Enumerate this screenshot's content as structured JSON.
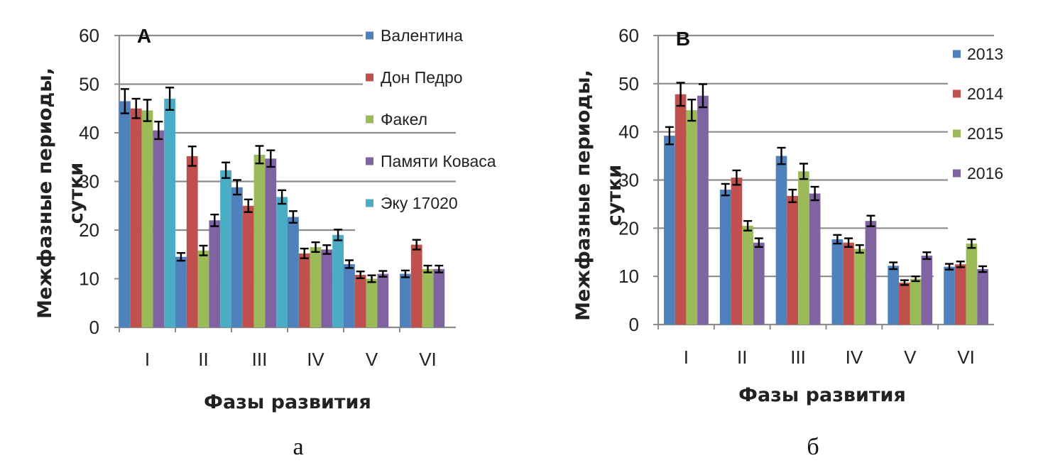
{
  "chart_data": [
    {
      "type": "bar",
      "panel_label": "A",
      "caption": "а",
      "categories": [
        "I",
        "II",
        "III",
        "IV",
        "V",
        "VI"
      ],
      "xlabel": "Фазы развития",
      "ylabel_lines": [
        "Межфазные периоды,",
        "сутки"
      ],
      "ylim": [
        0,
        60
      ],
      "yticks": [
        "0",
        "10",
        "20",
        "30",
        "40",
        "50",
        "60"
      ],
      "grid": true,
      "legend_position": "right",
      "series": [
        {
          "name": "Валентина",
          "color": "#4F81BD",
          "values": [
            46.5,
            14.5,
            28.8,
            22.7,
            13.0,
            11.0
          ],
          "errors": [
            2.5,
            0.8,
            1.5,
            1.2,
            0.8,
            0.7
          ]
        },
        {
          "name": "Дон Педро",
          "color": "#C0504D",
          "values": [
            45.0,
            35.2,
            25.0,
            15.2,
            10.8,
            17.0
          ],
          "errors": [
            2.0,
            2.0,
            1.3,
            1.0,
            0.7,
            1.0
          ]
        },
        {
          "name": "Факел",
          "color": "#9BBB59",
          "values": [
            44.6,
            15.8,
            35.5,
            16.5,
            10.0,
            12.0
          ],
          "errors": [
            2.2,
            1.0,
            1.8,
            1.0,
            0.7,
            0.7
          ]
        },
        {
          "name": "Памяти Коваса",
          "color": "#8064A2",
          "values": [
            40.5,
            22.0,
            34.7,
            16.0,
            11.0,
            12.0
          ],
          "errors": [
            1.8,
            1.2,
            1.7,
            0.9,
            0.6,
            0.7
          ]
        },
        {
          "name": "Эку 17020",
          "color": "#4BACC6",
          "values": [
            47.0,
            32.3,
            26.8,
            19.0,
            null,
            null
          ],
          "errors": [
            2.3,
            1.6,
            1.4,
            1.1,
            null,
            null
          ]
        }
      ]
    },
    {
      "type": "bar",
      "panel_label": "B",
      "caption": "б",
      "categories": [
        "I",
        "II",
        "III",
        "IV",
        "V",
        "VI"
      ],
      "xlabel": "Фазы развития",
      "ylabel_lines": [
        "Межфазные периоды,",
        "сутки"
      ],
      "ylim": [
        0,
        60
      ],
      "yticks": [
        "0",
        "10",
        "20",
        "30",
        "40",
        "50",
        "60"
      ],
      "grid": true,
      "legend_position": "right",
      "series": [
        {
          "name": "2013",
          "color": "#4F81BD",
          "values": [
            39.2,
            28.0,
            35.0,
            17.7,
            12.2,
            12.0
          ],
          "errors": [
            1.8,
            1.2,
            1.7,
            0.9,
            0.7,
            0.6
          ]
        },
        {
          "name": "2014",
          "color": "#C0504D",
          "values": [
            47.8,
            30.5,
            26.7,
            17.0,
            8.7,
            12.5
          ],
          "errors": [
            2.4,
            1.5,
            1.3,
            0.9,
            0.5,
            0.6
          ]
        },
        {
          "name": "2015",
          "color": "#9BBB59",
          "values": [
            44.5,
            20.5,
            31.8,
            15.7,
            9.5,
            16.8
          ],
          "errors": [
            2.2,
            1.0,
            1.6,
            0.8,
            0.5,
            0.9
          ]
        },
        {
          "name": "2016",
          "color": "#8064A2",
          "values": [
            47.5,
            17.0,
            27.2,
            21.5,
            14.3,
            11.5
          ],
          "errors": [
            2.4,
            0.9,
            1.4,
            1.1,
            0.7,
            0.6
          ]
        }
      ]
    }
  ]
}
